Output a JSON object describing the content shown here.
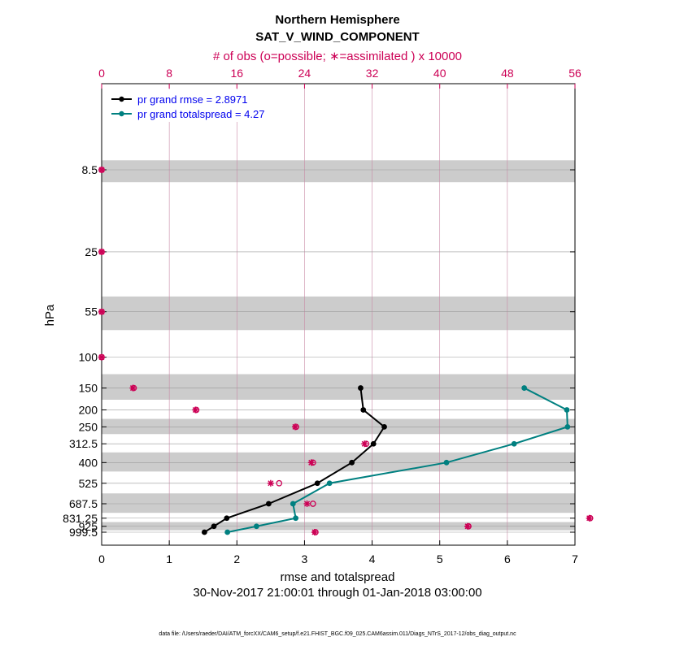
{
  "titles": {
    "line1": "Northern Hemisphere",
    "line2": "SAT_V_WIND_COMPONENT",
    "top_axis": "# of obs (o=possible; ∗=assimilated ) x 10000"
  },
  "axes": {
    "xlabel": "rmse and totalspread",
    "ylabel": "hPa",
    "date_range": "30-Nov-2017 21:00:01 through 01-Jan-2018 03:00:00",
    "footer": "data file: /Users/raeder/DAI/ATM_forcXX/CAM6_setup/f.e21.FHIST_BGC.f09_025.CAM6assim.011/Diags_NTrS_2017-12/obs_diag_output.nc"
  },
  "colors": {
    "rmse": "#000000",
    "spread": "#008080",
    "obs": "#cc0055",
    "band": "#cccccc"
  },
  "chart_data": {
    "type": "line",
    "title": "Northern Hemisphere SAT_V_WIND_COMPONENT",
    "xlim": [
      0,
      7
    ],
    "x_ticks": [
      "0",
      "1",
      "2",
      "3",
      "4",
      "5",
      "6",
      "7"
    ],
    "top_xlim": [
      0,
      56
    ],
    "top_ticks": [
      "0",
      "8",
      "16",
      "24",
      "32",
      "40",
      "48",
      "56"
    ],
    "y_scale": "log (reversed)",
    "y_levels": [
      8.5,
      25,
      55,
      100,
      150,
      200,
      250,
      312.5,
      400,
      525,
      687.5,
      831.25,
      925,
      999.5
    ],
    "y_tick_labels": [
      "8.5",
      "25",
      "55",
      "100",
      "150",
      "200",
      "250",
      "312.5",
      "400",
      "525",
      "687.5",
      "831.25",
      "925",
      "999.5"
    ],
    "shaded_bands": [
      [
        7.5,
        10
      ],
      [
        45,
        70
      ],
      [
        125,
        175
      ],
      [
        225,
        275
      ],
      [
        350,
        450
      ],
      [
        600,
        775
      ],
      [
        875,
        975
      ]
    ],
    "legend_position": "top-left",
    "series": [
      {
        "name": "pr grand rmse = 2.8971",
        "levels": [
          150,
          200,
          250,
          312.5,
          400,
          525,
          687.5,
          831.25,
          925,
          999.5
        ],
        "values": [
          3.83,
          3.87,
          4.18,
          4.02,
          3.7,
          3.19,
          2.47,
          1.85,
          1.66,
          1.52
        ]
      },
      {
        "name": "pr grand totalspread = 4.27",
        "levels": [
          150,
          200,
          250,
          312.5,
          400,
          525,
          687.5,
          831.25,
          925,
          999.5
        ],
        "values": [
          6.25,
          6.88,
          6.89,
          6.1,
          5.1,
          3.37,
          2.83,
          2.87,
          2.29,
          1.86
        ]
      }
    ],
    "obs_counts": {
      "levels": [
        8.5,
        25,
        55,
        100,
        150,
        200,
        250,
        312.5,
        400,
        525,
        687.5,
        831.25,
        925,
        999.5
      ],
      "possible": [
        0.0,
        0.0,
        0.0,
        0.0,
        3.8,
        11.2,
        23.0,
        31.3,
        25.0,
        21.0,
        25.0,
        57.8,
        43.4,
        25.3
      ],
      "assimilated": [
        0.0,
        0.0,
        0.0,
        0.0,
        3.7,
        11.1,
        22.9,
        31.1,
        24.8,
        20.0,
        24.3,
        57.7,
        43.3,
        25.2
      ]
    }
  }
}
